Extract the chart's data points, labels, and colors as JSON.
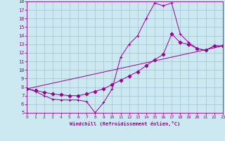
{
  "xlabel": "Windchill (Refroidissement éolien,°C)",
  "bg_color": "#cce8f0",
  "line_color": "#990099",
  "grid_color": "#99bbcc",
  "xmin": 0,
  "xmax": 23,
  "ymin": 5,
  "ymax": 18,
  "xticks": [
    0,
    1,
    2,
    3,
    4,
    5,
    6,
    7,
    8,
    9,
    10,
    11,
    12,
    13,
    14,
    15,
    16,
    17,
    18,
    19,
    20,
    21,
    22,
    23
  ],
  "yticks": [
    5,
    6,
    7,
    8,
    9,
    10,
    11,
    12,
    13,
    14,
    15,
    16,
    17,
    18
  ],
  "series": [
    {
      "x": [
        0,
        1,
        2,
        3,
        4,
        5,
        6,
        7,
        8,
        9,
        10,
        11,
        12,
        13,
        14,
        15,
        16,
        17,
        18,
        19,
        20,
        21,
        22,
        23
      ],
      "y": [
        7.8,
        7.5,
        7.0,
        6.6,
        6.5,
        6.5,
        6.5,
        6.3,
        5.0,
        6.2,
        7.8,
        11.5,
        13.0,
        14.0,
        16.0,
        17.8,
        17.5,
        17.8,
        14.2,
        13.2,
        12.5,
        12.3,
        12.8,
        12.8
      ],
      "marker": "+"
    },
    {
      "x": [
        0,
        1,
        2,
        3,
        4,
        5,
        6,
        7,
        8,
        9,
        10,
        11,
        12,
        13,
        14,
        15,
        16,
        17,
        18,
        19,
        20,
        21,
        22,
        23
      ],
      "y": [
        7.8,
        7.6,
        7.4,
        7.2,
        7.1,
        7.0,
        7.0,
        7.2,
        7.5,
        7.8,
        8.3,
        8.8,
        9.3,
        9.8,
        10.5,
        11.2,
        11.8,
        14.2,
        13.2,
        13.0,
        12.5,
        12.3,
        12.8,
        12.8
      ],
      "marker": "D"
    },
    {
      "x": [
        0,
        23
      ],
      "y": [
        7.8,
        12.8
      ],
      "marker": null
    }
  ]
}
